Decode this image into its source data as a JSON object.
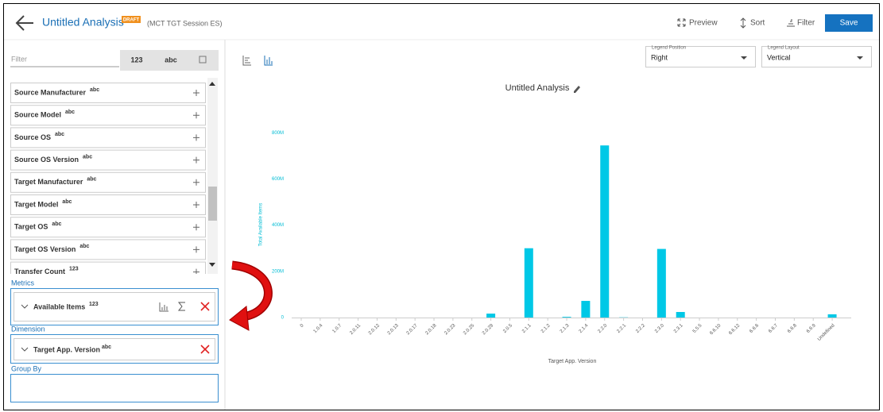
{
  "header": {
    "title": "Untitled Analysis",
    "badge": "DRAFT",
    "session": "(MCT TGT Session ES)",
    "actions": [
      "Preview",
      "Sort",
      "Filter"
    ],
    "save": "Save"
  },
  "sidebar": {
    "filter_placeholder": "Filter",
    "type_tabs": [
      "123",
      "abc"
    ],
    "fields": [
      {
        "name": "Source Manufacturer",
        "type": "abc"
      },
      {
        "name": "Source Model",
        "type": "abc"
      },
      {
        "name": "Source OS",
        "type": "abc"
      },
      {
        "name": "Source OS Version",
        "type": "abc"
      },
      {
        "name": "Target Manufacturer",
        "type": "abc"
      },
      {
        "name": "Target Model",
        "type": "abc"
      },
      {
        "name": "Target OS",
        "type": "abc"
      },
      {
        "name": "Target OS Version",
        "type": "abc"
      },
      {
        "name": "Transfer Count",
        "type": "123"
      }
    ],
    "metrics": {
      "label": "Metrics",
      "items": [
        {
          "name": "Available Items",
          "type": "123"
        }
      ]
    },
    "dimension": {
      "label": "Dimension",
      "items": [
        {
          "name": "Target App. Version",
          "type": "abc"
        }
      ]
    },
    "group_by": {
      "label": "Group By"
    }
  },
  "legend_position": {
    "label": "Legend Position",
    "value": "Right"
  },
  "legend_layout": {
    "label": "Legend Layout",
    "value": "Vertical"
  },
  "chart_data": {
    "type": "bar",
    "title": "Untitled Analysis",
    "x_label": "Target App. Version",
    "y_label": "Total Available Items",
    "categories": [
      "0",
      "1.0.4",
      "1.0.7",
      "2.0.11",
      "2.0.12",
      "2.0.13",
      "2.0.17",
      "2.0.18",
      "2.0.23",
      "2.0.25",
      "2.0.29",
      "2.0.5",
      "2.1.1",
      "2.1.2",
      "2.1.3",
      "2.1.4",
      "2.2.0",
      "2.2.1",
      "2.2.2",
      "2.3.0",
      "2.3.1",
      "5.5.5",
      "6.6.10",
      "6.6.12",
      "6.6.6",
      "6.6.7",
      "6.6.8",
      "6.6.9",
      "Undefined"
    ],
    "values": [
      0,
      0,
      0,
      0,
      0,
      0,
      0,
      0,
      0,
      0,
      17000000,
      0,
      300000000,
      0,
      3000000,
      72000000,
      745000000,
      1000000,
      0,
      297000000,
      24000000,
      0,
      0,
      0,
      0,
      0,
      0,
      0,
      14000000
    ],
    "color": "#00c8e6",
    "ylim": [
      0,
      830000000
    ],
    "yticks": [
      0,
      {
        "value": 200000000,
        "label": "200M"
      },
      {
        "value": 400000000,
        "label": "400M"
      },
      {
        "value": 600000000,
        "label": "600M"
      },
      {
        "value": 800000000,
        "label": "800M"
      }
    ],
    "grid": false
  }
}
